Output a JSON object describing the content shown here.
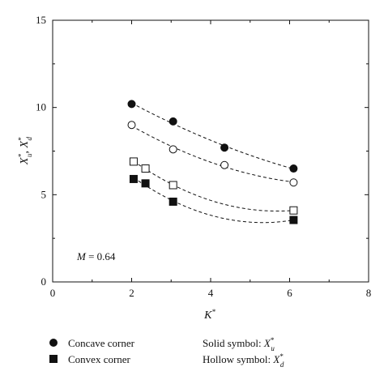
{
  "chart_data": {
    "type": "scatter",
    "xlabel": "K*",
    "ylabel": "X*u, X*d",
    "xlim": [
      0,
      8
    ],
    "ylim": [
      0,
      15
    ],
    "xticks": [
      0,
      2,
      4,
      6,
      8
    ],
    "yticks": [
      0,
      5,
      10,
      15
    ],
    "grid": false,
    "annotation": "M = 0.64",
    "series": [
      {
        "marker": "circle-filled",
        "line": "dashed-fit",
        "x": [
          2.0,
          3.05,
          4.35,
          6.1
        ],
        "y": [
          10.2,
          9.2,
          7.7,
          6.5
        ]
      },
      {
        "marker": "circle-hollow",
        "line": "dashed-fit",
        "x": [
          2.0,
          3.05,
          4.35,
          6.1
        ],
        "y": [
          9.0,
          7.6,
          6.7,
          5.7
        ]
      },
      {
        "marker": "square-hollow",
        "line": "dashed-fit",
        "x": [
          2.05,
          2.35,
          3.05,
          6.1
        ],
        "y": [
          6.9,
          6.5,
          5.55,
          4.1
        ]
      },
      {
        "marker": "square-filled",
        "line": "dashed-fit",
        "x": [
          2.05,
          2.35,
          3.05,
          6.1
        ],
        "y": [
          5.9,
          5.65,
          4.6,
          3.55
        ]
      }
    ]
  },
  "legend": {
    "items": [
      {
        "marker": "circle-filled",
        "label": "Concave corner"
      },
      {
        "marker": "square-filled",
        "label": "Convex corner"
      }
    ],
    "notes": [
      {
        "prefix": "Solid symbol: ",
        "var": "X",
        "sup": "*",
        "sub": "u"
      },
      {
        "prefix": "Hollow symbol: ",
        "var": "X",
        "sup": "*",
        "sub": "d"
      }
    ]
  }
}
